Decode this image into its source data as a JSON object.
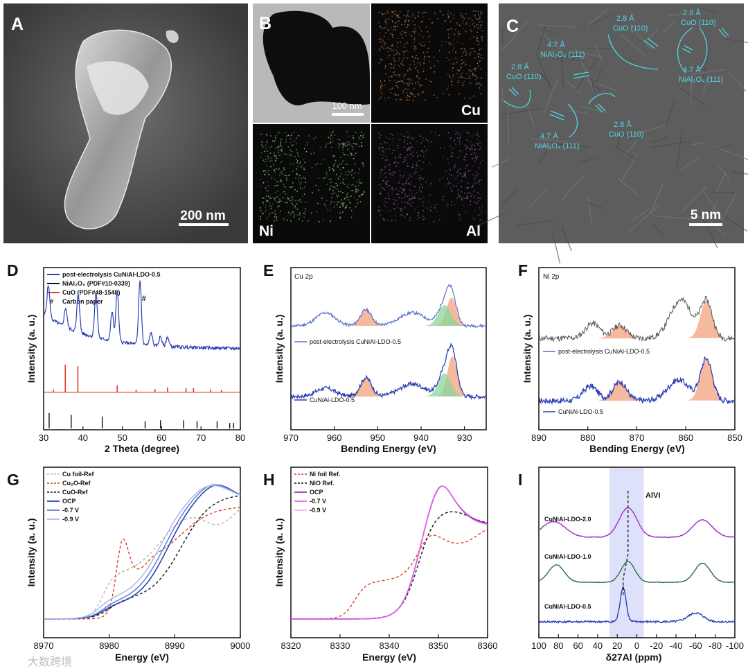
{
  "panel_labels": [
    "A",
    "B",
    "C",
    "D",
    "E",
    "F",
    "G",
    "H",
    "I"
  ],
  "colors": {
    "blue": "#2b3fb5",
    "red": "#e03b2a",
    "black": "#111111",
    "cyan": "#4fd6e6",
    "purple": "#a02ec4",
    "violet": "#e267e8",
    "green": "#2e6e45",
    "peach": "#f2a27e",
    "mint": "#8cd69a"
  },
  "panel_a": {
    "scale_bar": "200 nm"
  },
  "panel_b": {
    "scale_bar": "100 nm",
    "maps": [
      "Cu",
      "Ni",
      "Al"
    ]
  },
  "panel_c": {
    "scale_bar": "5 nm",
    "annotations": [
      {
        "d": "2.8 Å",
        "plane": "CuO (110)"
      },
      {
        "d": "2.8 Å",
        "plane": "CuO (110)"
      },
      {
        "d": "4.7 Å",
        "plane": "NiAl₂O₄ (111)"
      },
      {
        "d": "4.7 Å",
        "plane": "NiAl₂O₄ (111)"
      },
      {
        "d": "2.8 Å",
        "plane": "CuO (110)"
      },
      {
        "d": "4.7 Å",
        "plane": "NiAl₂O₄ (111)"
      },
      {
        "d": "2.8 Å",
        "plane": "CuO (110)"
      }
    ]
  },
  "chart_data": [
    {
      "panel": "D",
      "type": "line",
      "xlabel": "2 Theta (degree)",
      "ylabel": "Intensity (a. u.)",
      "xlim": [
        30,
        80
      ],
      "xticks": [
        30,
        40,
        50,
        60,
        70,
        80
      ],
      "legend": [
        "post-electrolysis CuNiAl-LDO-0.5",
        "NiAl₂O₄ (PDF#10-0339)",
        "CuO (PDF#48-1548)",
        "Carbon paper"
      ],
      "legend_marker": "#",
      "peak_marker": "#",
      "series": [
        {
          "name": "post-electrolysis CuNiAl-LDO-0.5",
          "peaks_2theta": [
            31.2,
            35.6,
            38.8,
            43.3,
            47.4,
            48.7,
            54.5,
            57.3,
            59.7,
            61.5
          ],
          "peak_heights": [
            0.5,
            0.3,
            0.6,
            0.7,
            0.45,
            0.8,
            1.0,
            0.2,
            0.15,
            0.15
          ]
        },
        {
          "name": "CuO (PDF#48-1548)",
          "x": [
            32.5,
            35.5,
            38.7,
            48.7,
            53.5,
            58.3,
            61.5,
            66.2,
            68.1,
            72.4,
            75.2
          ],
          "values": [
            0.1,
            1.0,
            0.95,
            0.25,
            0.1,
            0.12,
            0.18,
            0.15,
            0.15,
            0.1,
            0.08
          ]
        },
        {
          "name": "NiAl₂O₄ (PDF#10-0339)",
          "x": [
            31.4,
            37.0,
            44.9,
            55.8,
            59.7,
            65.6,
            69.0,
            74.1,
            77.3,
            78.3
          ],
          "values": [
            0.85,
            0.75,
            0.65,
            0.4,
            0.45,
            0.45,
            0.4,
            0.4,
            0.3,
            0.3
          ]
        }
      ]
    },
    {
      "panel": "E",
      "type": "line",
      "title": "Cu 2p",
      "xlabel": "Bending Energy (eV)",
      "ylabel": "Intensity (a. u.)",
      "xlim": [
        970,
        925
      ],
      "xticks": [
        970,
        960,
        950,
        940,
        930
      ],
      "series": [
        {
          "name": "post-electrolysis CuNiAl-LDO-0.5",
          "peaks_eV": [
            962,
            952.7,
            942,
            933,
            934.6
          ],
          "peak_heights": [
            0.45,
            0.55,
            0.45,
            0.95,
            0.7
          ]
        },
        {
          "name": "CuNiAl-LDO-0.5",
          "peaks_eV": [
            962,
            952.7,
            942,
            932.8,
            934.6
          ],
          "peak_heights": [
            0.2,
            0.45,
            0.3,
            0.95,
            0.55
          ]
        }
      ]
    },
    {
      "panel": "F",
      "type": "line",
      "title": "Ni 2p",
      "xlabel": "Bending Energy (eV)",
      "ylabel": "Intensity (a. u.)",
      "xlim": [
        890,
        850
      ],
      "xticks": [
        890,
        880,
        870,
        860,
        850
      ],
      "series": [
        {
          "name": "post-electrolysis CuNiAl-LDO-0.5",
          "peaks_eV": [
            879,
            873.5,
            861,
            855.8
          ],
          "peak_heights": [
            0.35,
            0.3,
            0.9,
            0.85
          ]
        },
        {
          "name": "CuNiAl-LDO-0.5",
          "peaks_eV": [
            879.5,
            873.5,
            861.5,
            855.8
          ],
          "peak_heights": [
            0.35,
            0.45,
            0.5,
            1.0
          ]
        }
      ]
    },
    {
      "panel": "G",
      "type": "line",
      "xlabel": "Energy (eV)",
      "ylabel": "Intensity (a. u.)",
      "xlim": [
        8970,
        9000
      ],
      "xticks": [
        8970,
        8980,
        8990,
        9000
      ],
      "legend": [
        "Cu foil-Ref",
        "Cu₂O-Ref",
        "CuO-Ref",
        "OCP",
        "-0.7 V",
        "-0.9 V"
      ]
    },
    {
      "panel": "H",
      "type": "line",
      "xlabel": "Energy (eV)",
      "ylabel": "Intensity (a. u.)",
      "xlim": [
        8320,
        8360
      ],
      "xticks": [
        8320,
        8330,
        8340,
        8350,
        8360
      ],
      "legend": [
        "Ni foil Ref.",
        "NiO Ref.",
        "OCP",
        "-0.7 V",
        "-0.9 V"
      ]
    },
    {
      "panel": "I",
      "type": "line",
      "xlabel": "δ27Al (ppm)",
      "ylabel": "",
      "xlim": [
        100,
        -100
      ],
      "xticks": [
        100,
        80,
        60,
        40,
        20,
        0,
        -20,
        -40,
        -60,
        -80,
        -100
      ],
      "annotation": "AlVI",
      "series": [
        {
          "name": "CuNiAl-LDO-2.0",
          "peaks_ppm": [
            85,
            9,
            -67
          ]
        },
        {
          "name": "CuNiAl-LDO-1.0",
          "peaks_ppm": [
            82,
            9,
            -67
          ]
        },
        {
          "name": "CuNiAl-LDO-0.5",
          "peaks_ppm": [
            14,
            -60
          ]
        }
      ]
    }
  ],
  "watermark": "大数跨境"
}
